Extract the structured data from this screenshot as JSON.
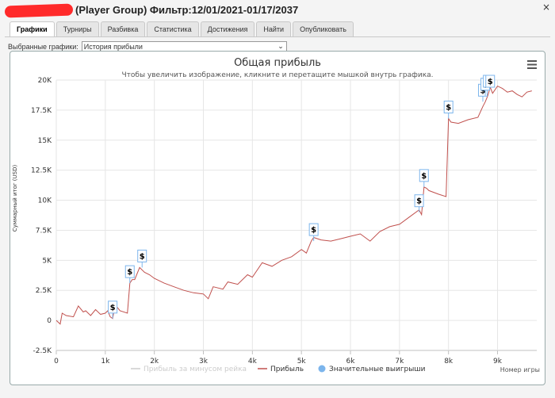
{
  "window": {
    "title": "(Player Group) Фильтр:12/01/2021-01/17/2037",
    "close_glyph": "×"
  },
  "tabs": [
    {
      "label": "Графики",
      "active": true
    },
    {
      "label": "Турниры",
      "active": false
    },
    {
      "label": "Разбивка",
      "active": false
    },
    {
      "label": "Статистика",
      "active": false
    },
    {
      "label": "Достижения",
      "active": false
    },
    {
      "label": "Найти",
      "active": false
    },
    {
      "label": "Опубликовать",
      "active": false
    }
  ],
  "selector": {
    "label": "Выбранные графики:",
    "value": "История прибыли"
  },
  "colors": {
    "profit_line": "#c0504d",
    "rake_line": "#cccccc",
    "big_win_marker": "#7cb5ec",
    "title": "#333333"
  },
  "chart_data": {
    "type": "line",
    "title": "Общая прибыль",
    "subtitle": "Чтобы увеличить изображение, кликните и перетащите мышкой внутрь графика.",
    "xlabel": "Номер игры",
    "ylabel": "Суммарный итог (USD)",
    "xlim": [
      0,
      9800
    ],
    "ylim": [
      -2500,
      20000
    ],
    "x_ticks": [
      0,
      1000,
      2000,
      3000,
      4000,
      5000,
      6000,
      7000,
      8000,
      9000
    ],
    "x_tick_labels": [
      "0",
      "1k",
      "2k",
      "3k",
      "4k",
      "5k",
      "6k",
      "7k",
      "8k",
      "9k"
    ],
    "y_ticks": [
      -2500,
      0,
      2500,
      5000,
      7500,
      10000,
      12500,
      15000,
      17500,
      20000
    ],
    "y_tick_labels": [
      "-2.5K",
      "0",
      "2.5K",
      "5K",
      "7.5K",
      "10K",
      "12.5K",
      "15K",
      "17.5K",
      "20K"
    ],
    "grid": true,
    "legend_position": "bottom",
    "menu_icon": "hamburger-icon",
    "series": [
      {
        "name": "Прибыль за минусом рейка",
        "visible": false,
        "values": []
      },
      {
        "name": "Прибыль",
        "x": [
          0,
          80,
          120,
          200,
          350,
          450,
          550,
          600,
          700,
          800,
          900,
          1000,
          1050,
          1100,
          1150,
          1200,
          1300,
          1450,
          1500,
          1550,
          1600,
          1700,
          1800,
          1900,
          2000,
          2200,
          2400,
          2600,
          2800,
          3000,
          3100,
          3200,
          3400,
          3500,
          3700,
          3900,
          4000,
          4200,
          4400,
          4600,
          4800,
          5000,
          5100,
          5200,
          5250,
          5400,
          5600,
          5800,
          6000,
          6200,
          6400,
          6600,
          6800,
          7000,
          7200,
          7400,
          7450,
          7500,
          7550,
          7600,
          7800,
          7950,
          8000,
          8050,
          8200,
          8400,
          8600,
          8700,
          8750,
          8800,
          8850,
          8900,
          9000,
          9100,
          9200,
          9300,
          9400,
          9500,
          9600,
          9700
        ],
        "values": [
          0,
          -300,
          600,
          400,
          300,
          1200,
          700,
          800,
          400,
          900,
          500,
          600,
          800,
          300,
          150,
          1300,
          800,
          600,
          3100,
          3400,
          3400,
          4400,
          4000,
          3800,
          3500,
          3100,
          2800,
          2500,
          2300,
          2200,
          1800,
          2800,
          2600,
          3200,
          3000,
          3800,
          3600,
          4800,
          4500,
          5000,
          5300,
          5900,
          5600,
          6600,
          6900,
          6700,
          6600,
          6800,
          7000,
          7200,
          6600,
          7400,
          7800,
          8000,
          8600,
          9200,
          8800,
          11100,
          11000,
          10800,
          10500,
          10300,
          16800,
          16500,
          16400,
          16700,
          16900,
          17800,
          18200,
          18700,
          19400,
          18900,
          19500,
          19300,
          19000,
          19100,
          18800,
          18600,
          19000,
          19100
        ]
      },
      {
        "name": "Значительные выигрыши",
        "marker_label": "$",
        "x": [
          1150,
          1500,
          1750,
          5250,
          7400,
          7500,
          8000,
          8700,
          8750,
          8800,
          8850
        ],
        "values": [
          150,
          3100,
          4400,
          6600,
          9000,
          11100,
          16800,
          18200,
          18700,
          19400,
          19500
        ]
      }
    ]
  }
}
